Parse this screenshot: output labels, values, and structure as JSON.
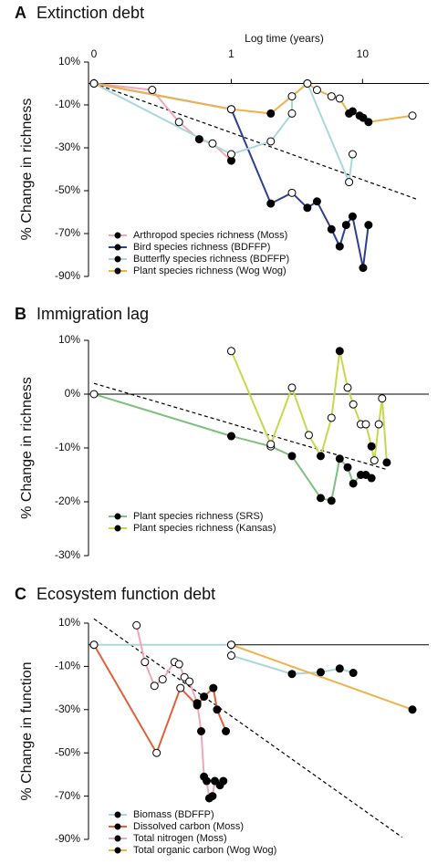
{
  "chart_data": [
    {
      "type": "line",
      "panel": "A",
      "title": "Extinction debt",
      "x_label": "Log time (years)",
      "y_label": "% Change in richness",
      "log_x": true,
      "xlim": [
        0.09,
        32
      ],
      "xticks": [
        {
          "value": 0.09,
          "label": "0"
        },
        1,
        10
      ],
      "ylim": [
        -90,
        10
      ],
      "yticks": [
        {
          "value": 10,
          "label": "10%"
        },
        {
          "value": -10,
          "label": "-10%"
        },
        {
          "value": -30,
          "label": "-30%"
        },
        {
          "value": -50,
          "label": "-50%"
        },
        {
          "value": -70,
          "label": "-70%"
        },
        {
          "value": -90,
          "label": "-90%"
        }
      ],
      "trend": {
        "x": [
          0.09,
          26
        ],
        "y": [
          0,
          -54
        ]
      },
      "series": [
        {
          "name": "Arthropod species richness (Moss)",
          "color": "#f2a7b8",
          "x": [
            0.09,
            0.25,
            0.4,
            0.57,
            0.72,
            1
          ],
          "values": [
            0,
            -3,
            -18,
            -26,
            -28,
            -36
          ],
          "marker_colors": [
            "#fff",
            "#fff",
            "#fff",
            "#000",
            "#fff",
            "#000"
          ]
        },
        {
          "name": "Bird species richness (BDFFP)",
          "color": "#2e3f8f",
          "x": [
            0.09,
            1,
            2,
            2.9,
            3.8,
            4.5,
            5.8,
            6.7,
            7.5,
            8.4,
            10.1,
            11.1
          ],
          "values": [
            0,
            -12,
            -56,
            -51,
            -58,
            -55,
            -68,
            -76,
            -66,
            -62,
            -86,
            -66
          ],
          "marker_colors": [
            "#fff",
            "#fff",
            "#000",
            "#fff",
            "#000",
            "#000",
            "#000",
            "#000",
            "#000",
            "#000",
            "#000",
            "#000"
          ]
        },
        {
          "name": "Butterfly species richness (BDFFP)",
          "color": "#a8d8d8",
          "x": [
            0.09,
            1,
            2,
            2.9,
            2.9,
            3.8,
            7.9,
            8.4
          ],
          "values": [
            0,
            -33,
            -27,
            -14,
            -6,
            0,
            -46,
            -33
          ],
          "marker_colors": [
            "#fff",
            "#fff",
            "#fff",
            "#fff",
            "#fff",
            "#fff",
            "#fff",
            "#fff"
          ]
        },
        {
          "name": "Plant species richness (Wog Wog)",
          "color": "#f0b24a",
          "x": [
            0.09,
            1,
            2,
            3.8,
            4.5,
            5.8,
            6.7,
            7.9,
            8.4,
            9.5,
            10.1,
            11.1,
            24
          ],
          "values": [
            0,
            -12,
            -14,
            0,
            -3,
            -6,
            -7,
            -14,
            -13,
            -15,
            -16,
            -18,
            -15
          ],
          "marker_colors": [
            "#fff",
            "#fff",
            "#000",
            "#fff",
            "#fff",
            "#fff",
            "#fff",
            "#000",
            "#000",
            "#000",
            "#000",
            "#000",
            "#fff"
          ]
        }
      ]
    },
    {
      "type": "line",
      "panel": "B",
      "title": "Immigration lag",
      "y_label": "% Change in richness",
      "log_x": true,
      "xlim": [
        0.09,
        32
      ],
      "ylim": [
        -30,
        10
      ],
      "yticks": [
        {
          "value": 10,
          "label": "10%"
        },
        {
          "value": 0,
          "label": "0%"
        },
        {
          "value": -10,
          "label": "-10%"
        },
        {
          "value": -20,
          "label": "-20%"
        },
        {
          "value": -30,
          "label": "-30%"
        }
      ],
      "trend": {
        "x": [
          0.09,
          15.3
        ],
        "y": [
          2,
          -14
        ]
      },
      "series": [
        {
          "name": "Plant species richness (SRS)",
          "color": "#7fbf7f",
          "x": [
            0.09,
            1,
            2,
            2.9,
            4.8,
            5.8,
            6.7,
            7.7,
            8.5,
            9.7,
            10.6,
            11.7
          ],
          "values": [
            0,
            -7.8,
            -9.7,
            -11.5,
            -19.3,
            -19.8,
            -12,
            -13.6,
            -16.6,
            -15,
            -15,
            -15.6
          ],
          "marker_colors": [
            "#fff",
            "#000",
            "#fff",
            "#000",
            "#000",
            "#000",
            "#000",
            "#000",
            "#000",
            "#000",
            "#000",
            "#000"
          ]
        },
        {
          "name": "Plant species richness (Kansas)",
          "color": "#c8d84a",
          "x": [
            1,
            2,
            2.9,
            3.9,
            4.8,
            5.8,
            6.7,
            7.7,
            8.5,
            9.7,
            10.6,
            11.7,
            12.3,
            13.3,
            14.1,
            15.3
          ],
          "values": [
            8,
            -9.3,
            1.2,
            -7.6,
            -11.5,
            -4.4,
            8,
            1.2,
            -1.9,
            -5.6,
            -5.6,
            -9.7,
            -12.3,
            -5.6,
            -0.8,
            -12.7
          ],
          "marker_colors": [
            "#fff",
            "#fff",
            "#fff",
            "#fff",
            "#000",
            "#fff",
            "#000",
            "#fff",
            "#fff",
            "#fff",
            "#fff",
            "#000",
            "#fff",
            "#fff",
            "#fff",
            "#000"
          ]
        }
      ]
    },
    {
      "type": "line",
      "panel": "C",
      "title": "Ecosystem function debt",
      "y_label": "% Change in function",
      "log_x": true,
      "xlim": [
        0.09,
        32
      ],
      "ylim": [
        -90,
        10
      ],
      "yticks": [
        {
          "value": 10,
          "label": "10%"
        },
        {
          "value": -10,
          "label": "-10%"
        },
        {
          "value": -30,
          "label": "-30%"
        },
        {
          "value": -50,
          "label": "-50%"
        },
        {
          "value": -70,
          "label": "-70%"
        },
        {
          "value": -90,
          "label": "-90%"
        }
      ],
      "trend": {
        "x": [
          0.09,
          20
        ],
        "y": [
          12,
          -89
        ]
      },
      "series": [
        {
          "name": "Biomass (BDFFP)",
          "color": "#a8d8d8",
          "x": [
            0.09,
            1,
            1,
            2.9,
            4.8,
            6.7,
            8.5
          ],
          "values": [
            0,
            0,
            -5,
            -13.5,
            -12.7,
            -11,
            -13
          ],
          "marker_colors": [
            "#fff",
            "#fff",
            "#fff",
            "#000",
            "#000",
            "#000",
            "#000"
          ]
        },
        {
          "name": "Dissolved carbon (Moss)",
          "color": "#e0603a",
          "x": [
            0.09,
            0.27,
            0.41,
            0.55,
            0.62,
            0.73,
            0.78,
            0.91
          ],
          "values": [
            0,
            -50,
            -20,
            -28,
            -24,
            -20,
            -30,
            -40
          ],
          "marker_colors": [
            "#fff",
            "#fff",
            "#fff",
            "#000",
            "#000",
            "#000",
            "#000",
            "#000"
          ]
        },
        {
          "name": "Total nitrogen (Moss)",
          "color": "#f2a7b8",
          "x": [
            0.19,
            0.22,
            0.26,
            0.3,
            0.37,
            0.4,
            0.44,
            0.48,
            0.55,
            0.59,
            0.62,
            0.65,
            0.68,
            0.72,
            0.75,
            0.82,
            0.87
          ],
          "values": [
            9,
            -8,
            -19,
            -16,
            -8,
            -9,
            -15,
            -17,
            -27,
            -40,
            -61,
            -63,
            -71,
            -70,
            -63,
            -65,
            -63
          ],
          "marker_colors": [
            "#fff",
            "#fff",
            "#fff",
            "#fff",
            "#fff",
            "#fff",
            "#fff",
            "#fff",
            "#000",
            "#000",
            "#000",
            "#000",
            "#000",
            "#000",
            "#000",
            "#000",
            "#000"
          ]
        },
        {
          "name": "Total organic carbon (Wog Wog)",
          "color": "#f0b24a",
          "x": [
            1,
            24
          ],
          "values": [
            0,
            -30
          ],
          "marker_colors": [
            "#fff",
            "#000"
          ]
        }
      ]
    }
  ]
}
